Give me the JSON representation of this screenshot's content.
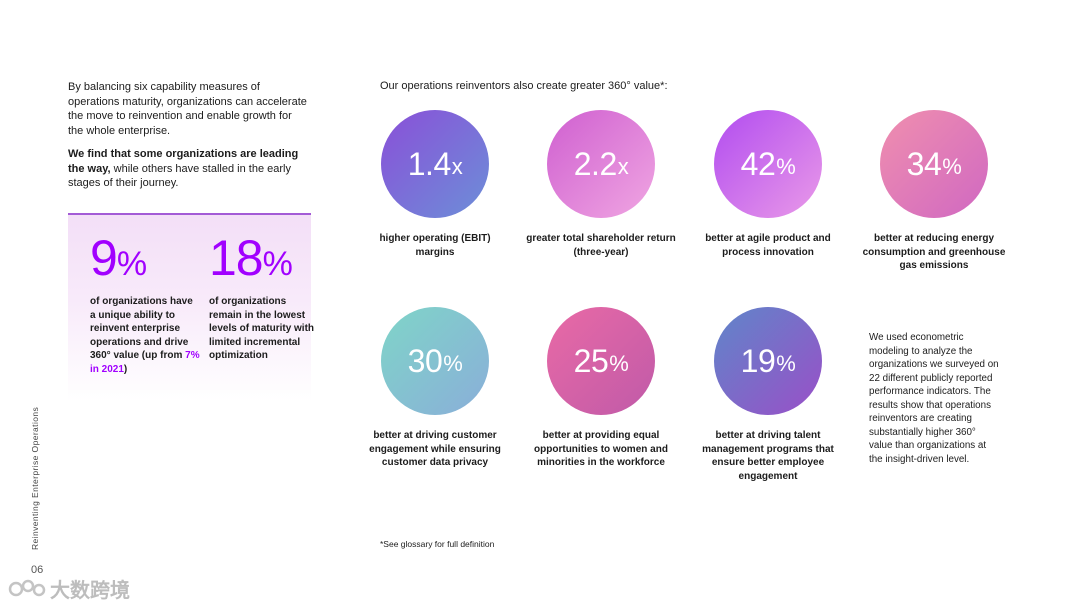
{
  "side_label": "Reinventing Enterprise Operations",
  "page_number": "06",
  "watermark": "大数跨境",
  "intro": {
    "paragraph1": "By balancing six capability measures of operations maturity, organizations can accelerate the move to reinvention and enable growth for the whole enterprise.",
    "paragraph2_bold": "We find that some organizations are leading the way,",
    "paragraph2_rest": " while others have stalled in the early stages of their journey."
  },
  "stats": [
    {
      "value": "9",
      "unit": "%",
      "text": "of organizations have a unique ability to reinvent enterprise operations and drive 360° value (up from ",
      "highlight": "7% in 2021",
      "text_end": ")"
    },
    {
      "value": "18",
      "unit": "%",
      "text": "of organizations remain in the lowest levels of maturity with limited incremental optimization"
    }
  ],
  "grid_title": "Our operations reinventors also create greater 360° value*:",
  "metrics": [
    {
      "value": "1.4",
      "unit": "x",
      "label": "higher operating (EBIT) margins",
      "color_a": "#8a4fd8",
      "color_b": "#6c8fd8"
    },
    {
      "value": "2.2",
      "unit": "x",
      "label": "greater total shareholder return (three-year)",
      "color_a": "#cf5fd0",
      "color_b": "#f0a6e2"
    },
    {
      "value": "42",
      "unit": "%",
      "label": "better at agile product and process innovation",
      "color_a": "#b14cf0",
      "color_b": "#ea9ae8"
    },
    {
      "value": "34",
      "unit": "%",
      "label": "better at reducing energy consumption and greenhouse gas emissions",
      "color_a": "#f08fae",
      "color_b": "#d068c2"
    },
    {
      "value": "30",
      "unit": "%",
      "label": "better at driving customer engagement while ensuring customer data privacy",
      "color_a": "#7fd5c8",
      "color_b": "#8aaed9"
    },
    {
      "value": "25",
      "unit": "%",
      "label": "better at providing equal opportunities to women and minorities in the workforce",
      "color_a": "#e96aa6",
      "color_b": "#c05aa8"
    },
    {
      "value": "19",
      "unit": "%",
      "label": "better at driving talent management programs that ensure better employee engagement",
      "color_a": "#5f86c9",
      "color_b": "#9a4fc8"
    }
  ],
  "note": "We used econometric modeling to analyze the organizations we surveyed on 22 different publicly reported performance indicators. The results show that operations reinventors are creating substantially higher 360° value than organizations at the insight-driven level.",
  "footnote": "*See glossary for full definition"
}
